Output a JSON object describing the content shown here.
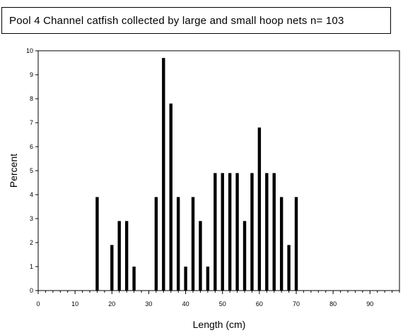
{
  "chart_data": {
    "type": "bar",
    "title": "Pool 4 Channel catfish collected by large and small hoop nets n= 103",
    "xlabel": "Length (cm)",
    "ylabel": "Percent",
    "xlim": [
      0,
      98
    ],
    "ylim": [
      0,
      10
    ],
    "x_ticks": [
      "0",
      "10",
      "20",
      "30",
      "40",
      "50",
      "60",
      "70",
      "80",
      "90"
    ],
    "y_ticks": [
      "0",
      "1",
      "2",
      "3",
      "4",
      "5",
      "6",
      "7",
      "8",
      "9",
      "10"
    ],
    "grid": false,
    "x": [
      16,
      20,
      22,
      24,
      26,
      32,
      34,
      36,
      38,
      40,
      42,
      44,
      46,
      48,
      50,
      52,
      54,
      56,
      58,
      60,
      62,
      64,
      66,
      68,
      70
    ],
    "values": [
      3.9,
      1.9,
      2.9,
      2.9,
      1.0,
      3.9,
      9.7,
      7.8,
      3.9,
      1.0,
      3.9,
      2.9,
      1.0,
      4.9,
      4.9,
      4.9,
      4.9,
      2.9,
      4.9,
      6.8,
      4.9,
      4.9,
      3.9,
      1.9,
      3.9
    ]
  }
}
